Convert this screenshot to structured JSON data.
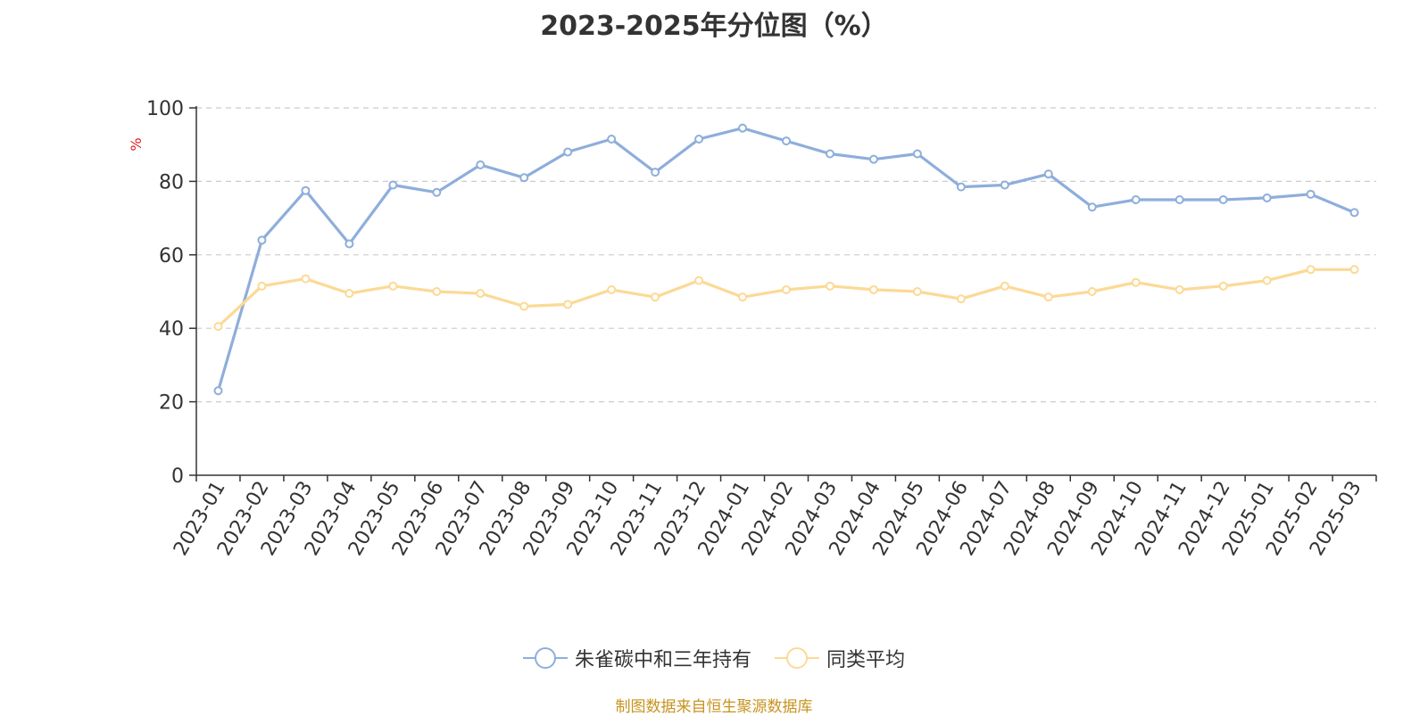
{
  "chart_data": {
    "type": "line",
    "title": "2023-2025年分位图（%）",
    "ylabel": "%",
    "ylim": [
      0,
      100
    ],
    "yticks": [
      0,
      20,
      40,
      60,
      80,
      100
    ],
    "grid": true,
    "legend_position": "bottom",
    "categories": [
      "2023-01",
      "2023-02",
      "2023-03",
      "2023-04",
      "2023-05",
      "2023-06",
      "2023-07",
      "2023-08",
      "2023-09",
      "2023-10",
      "2023-11",
      "2023-12",
      "2024-01",
      "2024-02",
      "2024-03",
      "2024-04",
      "2024-05",
      "2024-06",
      "2024-07",
      "2024-08",
      "2024-09",
      "2024-10",
      "2024-11",
      "2024-12",
      "2025-01",
      "2025-02",
      "2025-03"
    ],
    "series": [
      {
        "name": "朱雀碳中和三年持有",
        "color": "#8eaedb",
        "values": [
          23,
          64,
          77.5,
          63,
          79,
          77,
          84.5,
          81,
          88,
          91.5,
          82.5,
          91.5,
          94.5,
          91,
          87.5,
          86,
          87.5,
          78.5,
          79,
          82,
          73,
          75,
          75,
          75,
          75.5,
          76.5,
          71.5
        ]
      },
      {
        "name": "同类平均",
        "color": "#fcd995",
        "values": [
          40.5,
          51.5,
          53.5,
          49.5,
          51.5,
          50,
          49.5,
          46,
          46.5,
          50.5,
          48.5,
          53,
          48.5,
          50.5,
          51.5,
          50.5,
          50,
          48,
          51.5,
          48.5,
          50,
          52.5,
          50.5,
          51.5,
          53,
          56,
          56
        ]
      }
    ]
  },
  "source_note": "制图数据来自恒生聚源数据库"
}
